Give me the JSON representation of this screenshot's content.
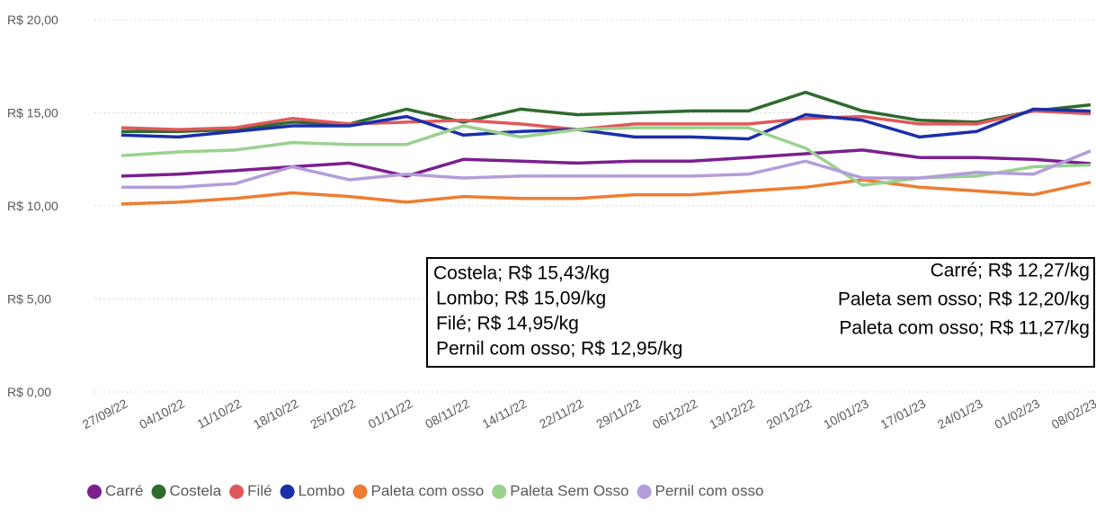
{
  "chart_data": {
    "type": "line",
    "categories": [
      "27/09/22",
      "04/10/22",
      "11/10/22",
      "18/10/22",
      "25/10/22",
      "01/11/22",
      "08/11/22",
      "14/11/22",
      "22/11/22",
      "29/11/22",
      "06/12/22",
      "13/12/22",
      "20/12/22",
      "10/01/23",
      "17/01/23",
      "24/01/23",
      "01/02/23",
      "08/02/23"
    ],
    "series": [
      {
        "name": "Carré",
        "color": "#7b1f8e",
        "values": [
          11.6,
          11.7,
          11.9,
          12.1,
          12.3,
          11.6,
          12.5,
          12.4,
          12.3,
          12.4,
          12.4,
          12.6,
          12.8,
          13.0,
          12.6,
          12.6,
          12.5,
          12.27
        ]
      },
      {
        "name": "Costela",
        "color": "#2e6b2e",
        "values": [
          14.0,
          14.0,
          14.1,
          14.5,
          14.4,
          15.2,
          14.5,
          15.2,
          14.9,
          15.0,
          15.1,
          15.1,
          16.1,
          15.1,
          14.6,
          14.5,
          15.1,
          15.43
        ]
      },
      {
        "name": "Filé",
        "color": "#e0585b",
        "values": [
          14.2,
          14.1,
          14.2,
          14.7,
          14.4,
          14.5,
          14.6,
          14.4,
          14.1,
          14.4,
          14.4,
          14.4,
          14.7,
          14.8,
          14.4,
          14.4,
          15.1,
          14.95
        ]
      },
      {
        "name": "Lombo",
        "color": "#1a2fa8",
        "values": [
          13.8,
          13.7,
          14.0,
          14.3,
          14.3,
          14.8,
          13.8,
          14.0,
          14.1,
          13.7,
          13.7,
          13.6,
          14.9,
          14.6,
          13.7,
          14.0,
          15.2,
          15.09
        ]
      },
      {
        "name": "Paleta com osso",
        "color": "#ed7d31",
        "values": [
          10.1,
          10.2,
          10.4,
          10.7,
          10.5,
          10.2,
          10.5,
          10.4,
          10.4,
          10.6,
          10.6,
          10.8,
          11.0,
          11.4,
          11.0,
          10.8,
          10.6,
          11.27
        ]
      },
      {
        "name": "Paleta Sem Osso",
        "color": "#99d18f",
        "values": [
          12.7,
          12.9,
          13.0,
          13.4,
          13.3,
          13.3,
          14.3,
          13.7,
          14.1,
          14.2,
          14.2,
          14.2,
          13.1,
          11.1,
          11.5,
          11.6,
          12.1,
          12.2
        ]
      },
      {
        "name": "Pernil com osso",
        "color": "#b39ddb",
        "values": [
          11.0,
          11.0,
          11.2,
          12.1,
          11.4,
          11.7,
          11.5,
          11.6,
          11.6,
          11.6,
          11.6,
          11.7,
          12.4,
          11.5,
          11.5,
          11.8,
          11.7,
          12.95
        ]
      }
    ],
    "ylim": [
      0,
      20
    ],
    "yticks": [
      {
        "value": 0,
        "label": "R$ 0,00"
      },
      {
        "value": 5,
        "label": "R$ 5,00"
      },
      {
        "value": 10,
        "label": "R$ 10,00"
      },
      {
        "value": 15,
        "label": "R$ 15,00"
      },
      {
        "value": 20,
        "label": "R$ 20,00"
      }
    ],
    "grid": true,
    "legend": "bottom",
    "annotation_left": [
      "Costela; R$ 15,43/kg",
      "Lombo; R$ 15,09/kg",
      "Filé; R$ 14,95/kg",
      "Pernil com osso; R$ 12,95/kg"
    ],
    "annotation_right": [
      "Carré; R$ 12,27/kg",
      "Paleta sem osso; R$ 12,20/kg",
      "Paleta com osso; R$ 11,27/kg"
    ]
  }
}
